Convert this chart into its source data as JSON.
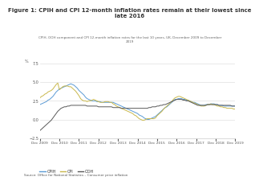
{
  "title": "Figure 1: CPIH and CPI 12-month inflation rates remain at their lowest since\nlate 2016",
  "subtitle": "CPIH, OOH component and CPI 12-month inflation rates for the last 10 years, UK, December 2009 to December\n2019",
  "source": "Source: Office for National Statistics – Consumer price inflation",
  "ylim": [
    -2.5,
    7.5
  ],
  "yticks": [
    -2.5,
    0,
    2.5,
    5,
    7.5
  ],
  "xlabel_dates": [
    "Dec 2009",
    "Dec 2010",
    "Dec 2011",
    "Dec 2012",
    "Dec 2013",
    "Dec 2014",
    "Dec 2015",
    "Dec 2016",
    "Dec 2017",
    "Dec 2018",
    "Dec 2019"
  ],
  "legend": [
    "CPIH",
    "CPI",
    "OOH"
  ],
  "colors": {
    "CPIH": "#5b9bd5",
    "CPI": "#c9b84c",
    "OOH": "#595959"
  },
  "bg_color": "#ffffff",
  "grid_color": "#e0e0e0",
  "CPIH": [
    2.0,
    2.1,
    2.2,
    2.3,
    2.4,
    2.6,
    2.7,
    2.9,
    3.1,
    3.4,
    3.7,
    3.9,
    4.1,
    4.2,
    4.3,
    4.4,
    4.5,
    4.6,
    4.7,
    4.8,
    4.7,
    4.6,
    4.4,
    4.2,
    3.9,
    3.7,
    3.5,
    3.3,
    3.0,
    2.8,
    2.7,
    2.6,
    2.5,
    2.5,
    2.5,
    2.4,
    2.4,
    2.4,
    2.3,
    2.3,
    2.3,
    2.3,
    2.3,
    2.3,
    2.3,
    2.3,
    2.2,
    2.1,
    2.0,
    1.9,
    1.8,
    1.7,
    1.6,
    1.5,
    1.4,
    1.3,
    1.2,
    1.1,
    1.0,
    0.9,
    0.8,
    0.6,
    0.5,
    0.4,
    0.2,
    0.1,
    0.0,
    0.0,
    0.1,
    0.2,
    0.3,
    0.4,
    0.6,
    0.8,
    1.0,
    1.2,
    1.4,
    1.6,
    1.7,
    1.9,
    2.1,
    2.3,
    2.5,
    2.7,
    2.7,
    2.8,
    2.8,
    2.8,
    2.7,
    2.7,
    2.6,
    2.6,
    2.5,
    2.4,
    2.3,
    2.3,
    2.2,
    2.1,
    2.0,
    1.9,
    1.9,
    1.9,
    2.0,
    2.0,
    2.0,
    2.1,
    2.1,
    2.1,
    2.0,
    2.0,
    1.9,
    1.9,
    1.9,
    1.8,
    1.8,
    1.8,
    1.8,
    1.8,
    1.8,
    1.8,
    1.8
  ],
  "CPI": [
    2.9,
    3.1,
    3.2,
    3.4,
    3.5,
    3.7,
    3.8,
    3.9,
    4.1,
    4.4,
    4.7,
    4.9,
    4.0,
    4.2,
    4.4,
    4.5,
    4.5,
    4.5,
    4.4,
    4.4,
    4.2,
    4.0,
    3.8,
    3.5,
    3.2,
    2.8,
    2.6,
    2.5,
    2.5,
    2.4,
    2.5,
    2.5,
    2.6,
    2.7,
    2.6,
    2.5,
    2.4,
    2.3,
    2.3,
    2.3,
    2.4,
    2.4,
    2.4,
    2.3,
    2.3,
    2.1,
    2.0,
    1.8,
    1.7,
    1.6,
    1.5,
    1.4,
    1.3,
    1.2,
    1.1,
    1.0,
    0.9,
    0.8,
    0.6,
    0.5,
    0.3,
    0.1,
    0.0,
    -0.1,
    -0.1,
    0.0,
    0.1,
    0.1,
    0.1,
    0.1,
    0.1,
    0.2,
    0.5,
    0.7,
    0.9,
    1.1,
    1.4,
    1.6,
    1.8,
    2.0,
    2.2,
    2.4,
    2.7,
    2.9,
    3.0,
    3.1,
    3.1,
    3.0,
    2.9,
    2.8,
    2.7,
    2.6,
    2.5,
    2.4,
    2.3,
    2.2,
    2.1,
    2.0,
    1.9,
    1.8,
    1.8,
    1.8,
    1.9,
    2.0,
    2.0,
    2.1,
    2.0,
    2.0,
    1.9,
    1.8,
    1.8,
    1.7,
    1.7,
    1.6,
    1.6,
    1.5,
    1.5,
    1.5,
    1.5,
    1.4,
    1.4
  ],
  "OOH": [
    -1.5,
    -1.3,
    -1.1,
    -0.9,
    -0.7,
    -0.5,
    -0.3,
    -0.1,
    0.2,
    0.5,
    0.8,
    1.1,
    1.3,
    1.5,
    1.6,
    1.7,
    1.7,
    1.8,
    1.8,
    1.9,
    1.9,
    1.9,
    1.9,
    1.9,
    1.9,
    1.9,
    1.9,
    1.9,
    1.9,
    1.8,
    1.8,
    1.8,
    1.8,
    1.8,
    1.8,
    1.8,
    1.7,
    1.7,
    1.7,
    1.7,
    1.7,
    1.7,
    1.7,
    1.7,
    1.7,
    1.6,
    1.6,
    1.6,
    1.6,
    1.6,
    1.5,
    1.5,
    1.5,
    1.5,
    1.5,
    1.5,
    1.5,
    1.5,
    1.5,
    1.5,
    1.5,
    1.5,
    1.5,
    1.5,
    1.5,
    1.5,
    1.5,
    1.6,
    1.6,
    1.7,
    1.7,
    1.7,
    1.8,
    1.8,
    1.9,
    1.9,
    2.0,
    2.0,
    2.1,
    2.2,
    2.3,
    2.4,
    2.5,
    2.6,
    2.7,
    2.7,
    2.7,
    2.7,
    2.6,
    2.6,
    2.5,
    2.5,
    2.4,
    2.3,
    2.2,
    2.1,
    2.0,
    1.9,
    1.9,
    1.9,
    1.9,
    1.9,
    1.9,
    2.0,
    2.0,
    2.0,
    2.0,
    2.0,
    2.0,
    2.0,
    1.9,
    1.9,
    1.9,
    1.9,
    1.9,
    1.9,
    1.9,
    1.9,
    1.8,
    1.8,
    1.8
  ]
}
